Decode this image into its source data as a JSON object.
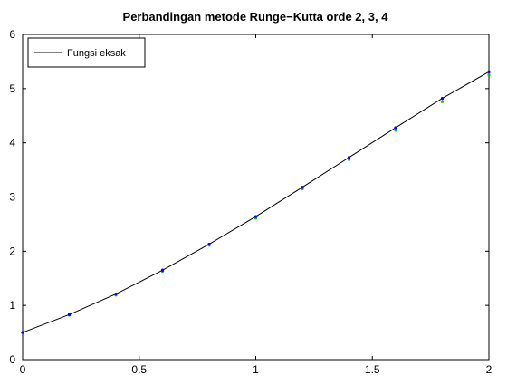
{
  "chart_data": {
    "type": "line",
    "title": "Perbandingan metode Runge−Kutta orde 2, 3, 4",
    "xlabel": "",
    "ylabel": "",
    "xlim": [
      0,
      2
    ],
    "ylim": [
      0,
      6
    ],
    "x_ticks": [
      "0",
      "0.5",
      "1",
      "1.5",
      "2"
    ],
    "y_ticks": [
      "0",
      "1",
      "2",
      "3",
      "4",
      "5",
      "6"
    ],
    "grid": false,
    "legend_position": "top-left",
    "series": [
      {
        "name": "Fungsi eksak",
        "style": "line",
        "color": "#000000",
        "x": [
          0,
          0.2,
          0.4,
          0.6,
          0.8,
          1.0,
          1.2,
          1.4,
          1.6,
          1.8,
          2.0
        ],
        "values": [
          0.5,
          0.83,
          1.21,
          1.65,
          2.13,
          2.64,
          3.18,
          3.73,
          4.28,
          4.82,
          5.31
        ]
      },
      {
        "style": "markers",
        "color": "#00cc00",
        "x": [
          0,
          0.2,
          0.4,
          0.6,
          0.8,
          1.0,
          1.2,
          1.4,
          1.6,
          1.8,
          2.0
        ],
        "values": [
          0.5,
          0.82,
          1.19,
          1.63,
          2.11,
          2.61,
          3.15,
          3.69,
          4.23,
          4.76,
          5.25
        ]
      },
      {
        "style": "markers",
        "color": "#ff00ff",
        "x": [
          0,
          0.2,
          0.4,
          0.6,
          0.8,
          1.0,
          1.2,
          1.4,
          1.6,
          1.8,
          2.0
        ],
        "values": [
          0.5,
          0.83,
          1.21,
          1.65,
          2.13,
          2.64,
          3.18,
          3.73,
          4.28,
          4.82,
          5.3
        ]
      },
      {
        "style": "markers",
        "color": "#0000ff",
        "x": [
          0,
          0.2,
          0.4,
          0.6,
          0.8,
          1.0,
          1.2,
          1.4,
          1.6,
          1.8,
          2.0
        ],
        "values": [
          0.5,
          0.83,
          1.21,
          1.65,
          2.13,
          2.64,
          3.18,
          3.73,
          4.28,
          4.82,
          5.31
        ]
      }
    ]
  }
}
